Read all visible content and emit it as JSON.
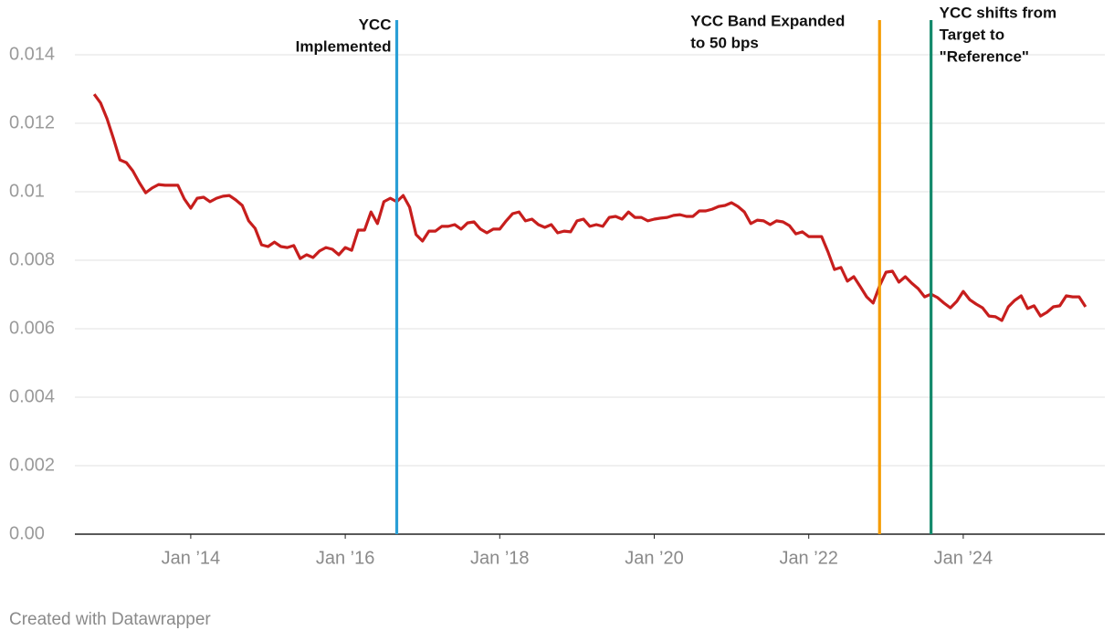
{
  "chart_data": {
    "type": "line",
    "x": [
      "2012-10",
      "2012-11",
      "2012-12",
      "2013-01",
      "2013-02",
      "2013-03",
      "2013-04",
      "2013-05",
      "2013-06",
      "2013-07",
      "2013-08",
      "2013-09",
      "2013-10",
      "2013-11",
      "2013-12",
      "2014-01",
      "2014-02",
      "2014-03",
      "2014-04",
      "2014-05",
      "2014-06",
      "2014-07",
      "2014-08",
      "2014-09",
      "2014-10",
      "2014-11",
      "2014-12",
      "2015-01",
      "2015-02",
      "2015-03",
      "2015-04",
      "2015-05",
      "2015-06",
      "2015-07",
      "2015-08",
      "2015-09",
      "2015-10",
      "2015-11",
      "2015-12",
      "2016-01",
      "2016-02",
      "2016-03",
      "2016-04",
      "2016-05",
      "2016-06",
      "2016-07",
      "2016-08",
      "2016-09",
      "2016-10",
      "2016-11",
      "2016-12",
      "2017-01",
      "2017-02",
      "2017-03",
      "2017-04",
      "2017-05",
      "2017-06",
      "2017-07",
      "2017-08",
      "2017-09",
      "2017-10",
      "2017-11",
      "2017-12",
      "2018-01",
      "2018-02",
      "2018-03",
      "2018-04",
      "2018-05",
      "2018-06",
      "2018-07",
      "2018-08",
      "2018-09",
      "2018-10",
      "2018-11",
      "2018-12",
      "2019-01",
      "2019-02",
      "2019-03",
      "2019-04",
      "2019-05",
      "2019-06",
      "2019-07",
      "2019-08",
      "2019-09",
      "2019-10",
      "2019-11",
      "2019-12",
      "2020-01",
      "2020-02",
      "2020-03",
      "2020-04",
      "2020-05",
      "2020-06",
      "2020-07",
      "2020-08",
      "2020-09",
      "2020-10",
      "2020-11",
      "2020-12",
      "2021-01",
      "2021-02",
      "2021-03",
      "2021-04",
      "2021-05",
      "2021-06",
      "2021-07",
      "2021-08",
      "2021-09",
      "2021-10",
      "2021-11",
      "2021-12",
      "2022-01",
      "2022-02",
      "2022-03",
      "2022-04",
      "2022-05",
      "2022-06",
      "2022-07",
      "2022-08",
      "2022-09",
      "2022-10",
      "2022-11",
      "2022-12",
      "2023-01",
      "2023-02",
      "2023-03",
      "2023-04",
      "2023-05",
      "2023-06",
      "2023-07",
      "2023-08",
      "2023-09",
      "2023-10",
      "2023-11",
      "2023-12",
      "2024-01",
      "2024-02",
      "2024-03",
      "2024-04",
      "2024-05",
      "2024-06",
      "2024-07",
      "2024-08",
      "2024-09",
      "2024-10",
      "2024-11",
      "2024-12",
      "2025-01",
      "2025-02",
      "2025-03",
      "2025-04",
      "2025-05",
      "2025-06",
      "2025-07",
      "2025-08"
    ],
    "series": [
      {
        "color": "#c71e1d",
        "values": [
          0.01285,
          0.01259,
          0.01213,
          0.01155,
          0.01093,
          0.01085,
          0.01061,
          0.01027,
          0.00997,
          0.01011,
          0.01021,
          0.01019,
          0.01019,
          0.01019,
          0.00979,
          0.00952,
          0.00981,
          0.00984,
          0.00971,
          0.00981,
          0.00987,
          0.00989,
          0.00976,
          0.0096,
          0.00915,
          0.00893,
          0.00845,
          0.0084,
          0.00853,
          0.0084,
          0.00837,
          0.00843,
          0.00805,
          0.00816,
          0.00808,
          0.00827,
          0.00837,
          0.00832,
          0.00816,
          0.00837,
          0.00829,
          0.00888,
          0.00888,
          0.00941,
          0.00907,
          0.00971,
          0.00981,
          0.00971,
          0.00989,
          0.00955,
          0.00875,
          0.00856,
          0.00885,
          0.00885,
          0.00899,
          0.00899,
          0.00904,
          0.00891,
          0.00909,
          0.00912,
          0.00891,
          0.0088,
          0.00891,
          0.00891,
          0.00915,
          0.00936,
          0.00941,
          0.00915,
          0.0092,
          0.00904,
          0.00896,
          0.00904,
          0.0088,
          0.00885,
          0.00883,
          0.00915,
          0.0092,
          0.00899,
          0.00904,
          0.00899,
          0.00925,
          0.00928,
          0.0092,
          0.00941,
          0.00925,
          0.00925,
          0.00915,
          0.0092,
          0.00923,
          0.00925,
          0.00931,
          0.00933,
          0.00928,
          0.00928,
          0.00944,
          0.00944,
          0.00949,
          0.00957,
          0.0096,
          0.00968,
          0.00957,
          0.00941,
          0.00907,
          0.00917,
          0.00915,
          0.00904,
          0.00915,
          0.00912,
          0.00901,
          0.00877,
          0.00883,
          0.00869,
          0.00869,
          0.00869,
          0.00824,
          0.00773,
          0.00779,
          0.00739,
          0.00752,
          0.00723,
          0.00693,
          0.00675,
          0.00725,
          0.00765,
          0.00768,
          0.00736,
          0.00752,
          0.00733,
          0.00717,
          0.00693,
          0.00701,
          0.00691,
          0.00675,
          0.00661,
          0.0068,
          0.00709,
          0.00685,
          0.00672,
          0.00661,
          0.00637,
          0.00635,
          0.00624,
          0.00664,
          0.00683,
          0.00696,
          0.00659,
          0.00667,
          0.00637,
          0.00648,
          0.00664,
          0.00667,
          0.00696,
          0.00693,
          0.00693,
          0.00664
        ]
      }
    ],
    "xlim": [
      "2012-07",
      "2025-11"
    ],
    "xticks": [
      {
        "value": "2014-01",
        "label": "Jan ’14"
      },
      {
        "value": "2016-01",
        "label": "Jan ’16"
      },
      {
        "value": "2018-01",
        "label": "Jan ’18"
      },
      {
        "value": "2020-01",
        "label": "Jan ’20"
      },
      {
        "value": "2022-01",
        "label": "Jan ’22"
      },
      {
        "value": "2024-01",
        "label": "Jan ’24"
      }
    ],
    "ylim": [
      0,
      0.014
    ],
    "yticks": [
      {
        "value": 0,
        "label": "0.00"
      },
      0.002,
      0.004,
      0.006,
      0.008,
      0.01,
      0.012,
      0.014
    ],
    "grid": true,
    "annotations": [
      {
        "x": "2016-09",
        "color": "#2a9fd6",
        "lines": [
          "YCC",
          "Implemented"
        ]
      },
      {
        "x": "2022-12",
        "color": "#f59b00",
        "lines": [
          "YCC Band Expanded",
          "to 50 bps"
        ]
      },
      {
        "x": "2023-08",
        "color": "#13896b",
        "lines": [
          "YCC shifts from",
          "Target to",
          "\"Reference\""
        ]
      }
    ],
    "footer": "Created with Datawrapper"
  }
}
